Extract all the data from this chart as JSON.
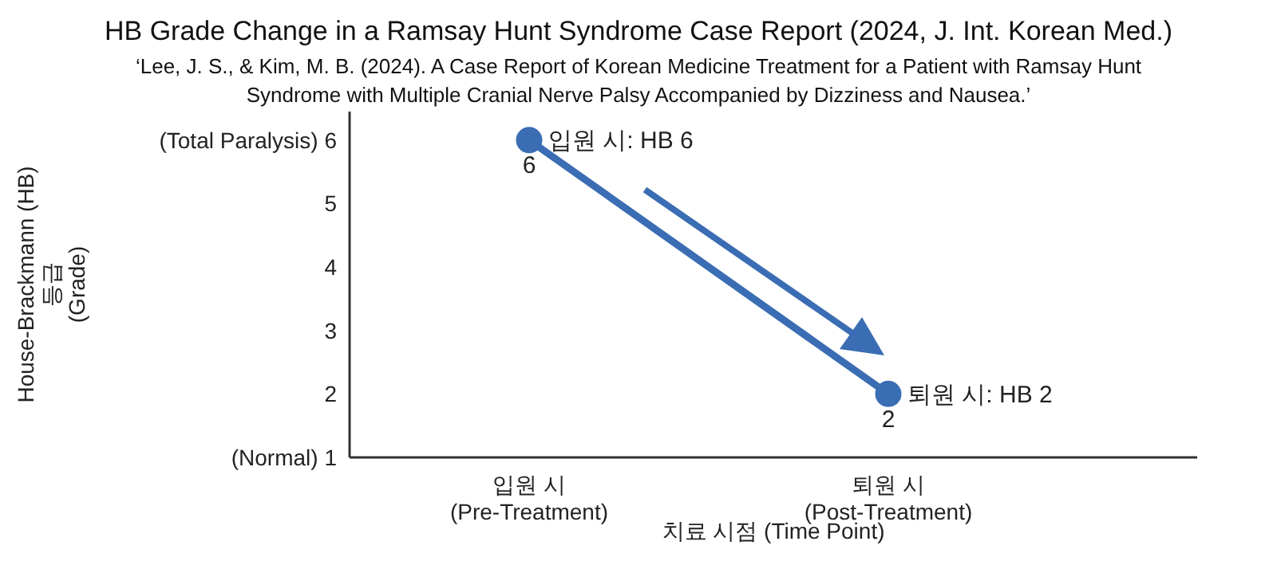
{
  "chart_data": {
    "type": "line",
    "title": "HB Grade Change in a Ramsay Hunt Syndrome Case Report (2024, J. Int. Korean Med.)",
    "subtitle": "‘Lee, J. S., & Kim, M. B. (2024).  A Case Report of Korean Medicine Treatment for a Patient with Ramsay Hunt Syndrome with Multiple Cranial Nerve Palsy Accompanied by Dizziness and Nausea.’",
    "xlabel": "치료 시점 (Time Point)",
    "ylabel": "House-Brackmann (HB)\n등급\n(Grade)",
    "categories": [
      "입원 시\n(Pre-Treatment)",
      "퇴원 시\n(Post-Treatment)"
    ],
    "series": [
      {
        "color": "#3a6db3",
        "values": [
          6,
          2
        ]
      }
    ],
    "ylim": [
      1,
      6.45
    ],
    "yticks": [
      {
        "value": 1,
        "label": "(Normal) 1"
      },
      2,
      3,
      4,
      5,
      {
        "value": 6,
        "label": "(Total Paralysis) 6"
      }
    ],
    "annotations": [
      {
        "text": "입원 시: HB 6",
        "x": "입원 시\n(Pre-Treatment)",
        "y": 6
      },
      {
        "text": "퇴원 시: HB 2",
        "x": "퇴원 시\n(Post-Treatment)",
        "y": 2
      }
    ],
    "data_labels": true,
    "marker": "circle",
    "line_style": "solid",
    "grid": false,
    "legend": false
  }
}
